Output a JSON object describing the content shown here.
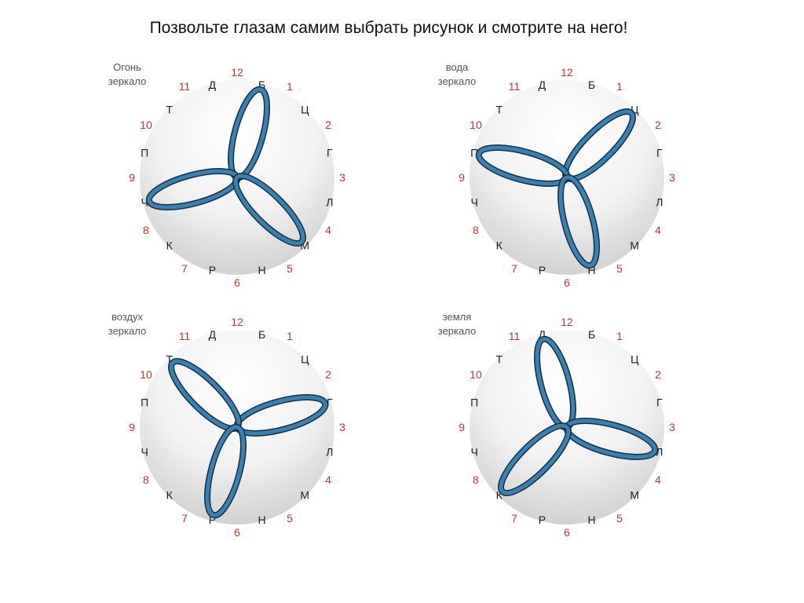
{
  "title": "Позвольте глазам самим выбрать рисунок и смотрите на него!",
  "colors": {
    "numbers": "#c0392b",
    "letters": "#222222",
    "petal": "#3d7fad",
    "petal_outline": "#15314a"
  },
  "dial": {
    "numbers": [
      "12",
      "1",
      "2",
      "3",
      "4",
      "5",
      "6",
      "7",
      "8",
      "9",
      "10",
      "11"
    ],
    "letters": [
      "Б",
      "Ц",
      "Г",
      "Л",
      "М",
      "Н",
      "Р",
      "К",
      "Ч",
      "П",
      "Т",
      "Д"
    ]
  },
  "panels": [
    {
      "caption_line1": "Огонь",
      "caption_line2": "зеркало",
      "petals": [
        "Б",
        "Ч",
        "М"
      ]
    },
    {
      "caption_line1": "вода",
      "caption_line2": "зеркало",
      "petals": [
        "Ц",
        "П",
        "Н"
      ]
    },
    {
      "caption_line1": "воздух",
      "caption_line2": "зеркало",
      "petals": [
        "Г",
        "Т",
        "Р"
      ]
    },
    {
      "caption_line1": "земля",
      "caption_line2": "зеркало",
      "petals": [
        "Д",
        "Л",
        "К"
      ]
    }
  ]
}
